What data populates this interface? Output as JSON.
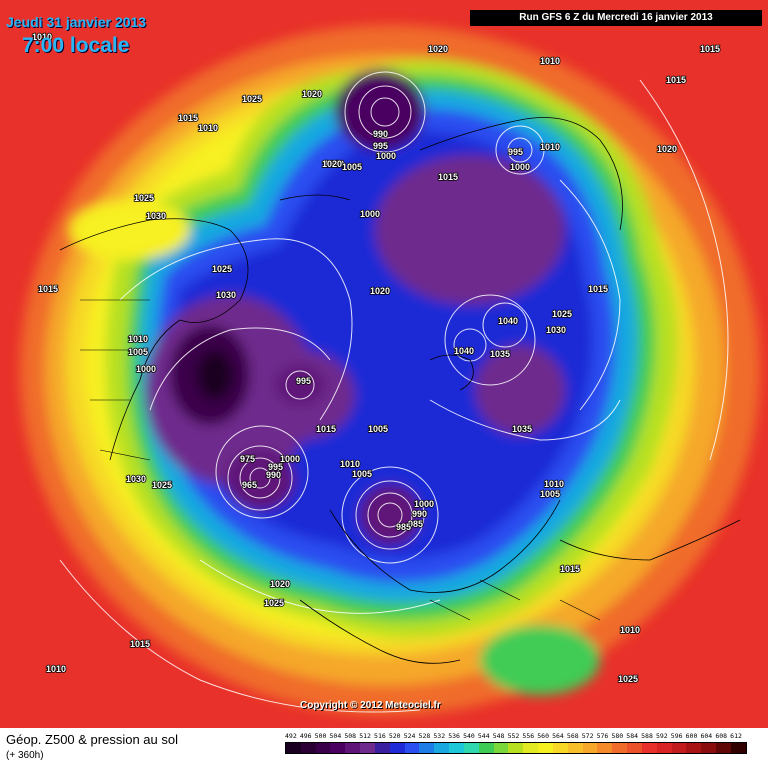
{
  "header": {
    "date": "Jeudi 31 janvier 2013",
    "time": "7:00 locale",
    "run_info": "Run GFS 6 Z du Mercredi 16 janvier 2013"
  },
  "map": {
    "copyright": "Copyright © 2012 Meteociel.fr",
    "isobar_labels": [
      "1010",
      "1015",
      "1020",
      "1010",
      "1015",
      "1025",
      "1020",
      "1015",
      "1010",
      "990",
      "995",
      "1000",
      "995",
      "1000",
      "1010",
      "1020",
      "1010",
      "1005",
      "1015",
      "1020",
      "1025",
      "1030",
      "1000",
      "1025",
      "1030",
      "1020",
      "1015",
      "1010",
      "1005",
      "1000",
      "1040",
      "1030",
      "1025",
      "1040",
      "1035",
      "1015",
      "995",
      "1015",
      "1005",
      "1035",
      "1010",
      "1005",
      "1010",
      "1005",
      "1000",
      "990",
      "985",
      "975",
      "965",
      "1000",
      "995",
      "990",
      "985",
      "1030",
      "1025",
      "1020",
      "1025",
      "1015",
      "1010",
      "1015",
      "1010",
      "1025"
    ],
    "colors": {
      "deep_purple": "#3a0060",
      "purple": "#7a1e7a",
      "blue": "#1f2bd6",
      "cyan": "#19a9e0",
      "green": "#3fcc55",
      "yellow": "#f7f021",
      "orange": "#f58a2a",
      "red": "#e8312a"
    }
  },
  "footer": {
    "title": "Géop. Z500 & pression au sol",
    "subtitle": "(+ 360h)"
  },
  "legend": {
    "values": [
      "492",
      "496",
      "500",
      "504",
      "508",
      "512",
      "516",
      "520",
      "524",
      "528",
      "532",
      "536",
      "540",
      "544",
      "548",
      "552",
      "556",
      "560",
      "564",
      "568",
      "572",
      "576",
      "580",
      "584",
      "588",
      "592",
      "596",
      "600",
      "604",
      "608",
      "612"
    ],
    "colors": [
      "#1a0020",
      "#2b0035",
      "#3b004a",
      "#4a0060",
      "#5e1478",
      "#6e2a8c",
      "#3a1fa0",
      "#1f2bd6",
      "#2a4ef0",
      "#1f7de8",
      "#19a9e0",
      "#1ec8d8",
      "#30d8b0",
      "#3fcc55",
      "#7ad83a",
      "#b6e020",
      "#e2ea22",
      "#f7f021",
      "#f7d826",
      "#f7c02a",
      "#f5a82a",
      "#f58a2a",
      "#f06c2a",
      "#ec522a",
      "#e8312a",
      "#d82424",
      "#c21c1c",
      "#a81414",
      "#8a0c0c",
      "#600606",
      "#300000"
    ]
  }
}
